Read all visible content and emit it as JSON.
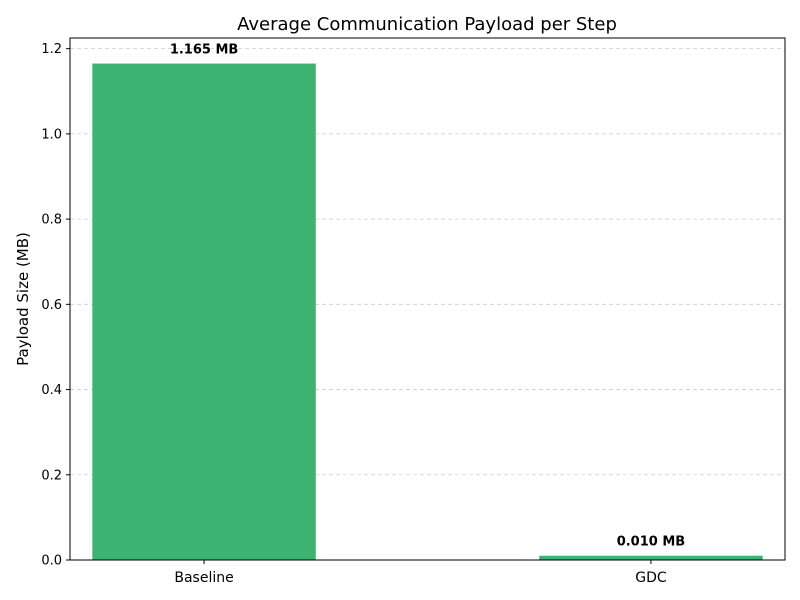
{
  "chart_data": {
    "type": "bar",
    "title": "Average Communication Payload per Step",
    "xlabel": "",
    "ylabel": "Payload Size (MB)",
    "categories": [
      "Baseline",
      "GDC"
    ],
    "values": [
      1.165,
      0.01
    ],
    "data_labels": [
      "1.165 MB",
      "0.010 MB"
    ],
    "ylim": [
      0,
      1.225
    ],
    "yticks": [
      0.0,
      0.2,
      0.4,
      0.6,
      0.8,
      1.0,
      1.2
    ],
    "ytick_labels": [
      "0.0",
      "0.2",
      "0.4",
      "0.6",
      "0.8",
      "1.0",
      "1.2"
    ],
    "grid": "y-dashed",
    "bar_color": "#3cb371"
  }
}
